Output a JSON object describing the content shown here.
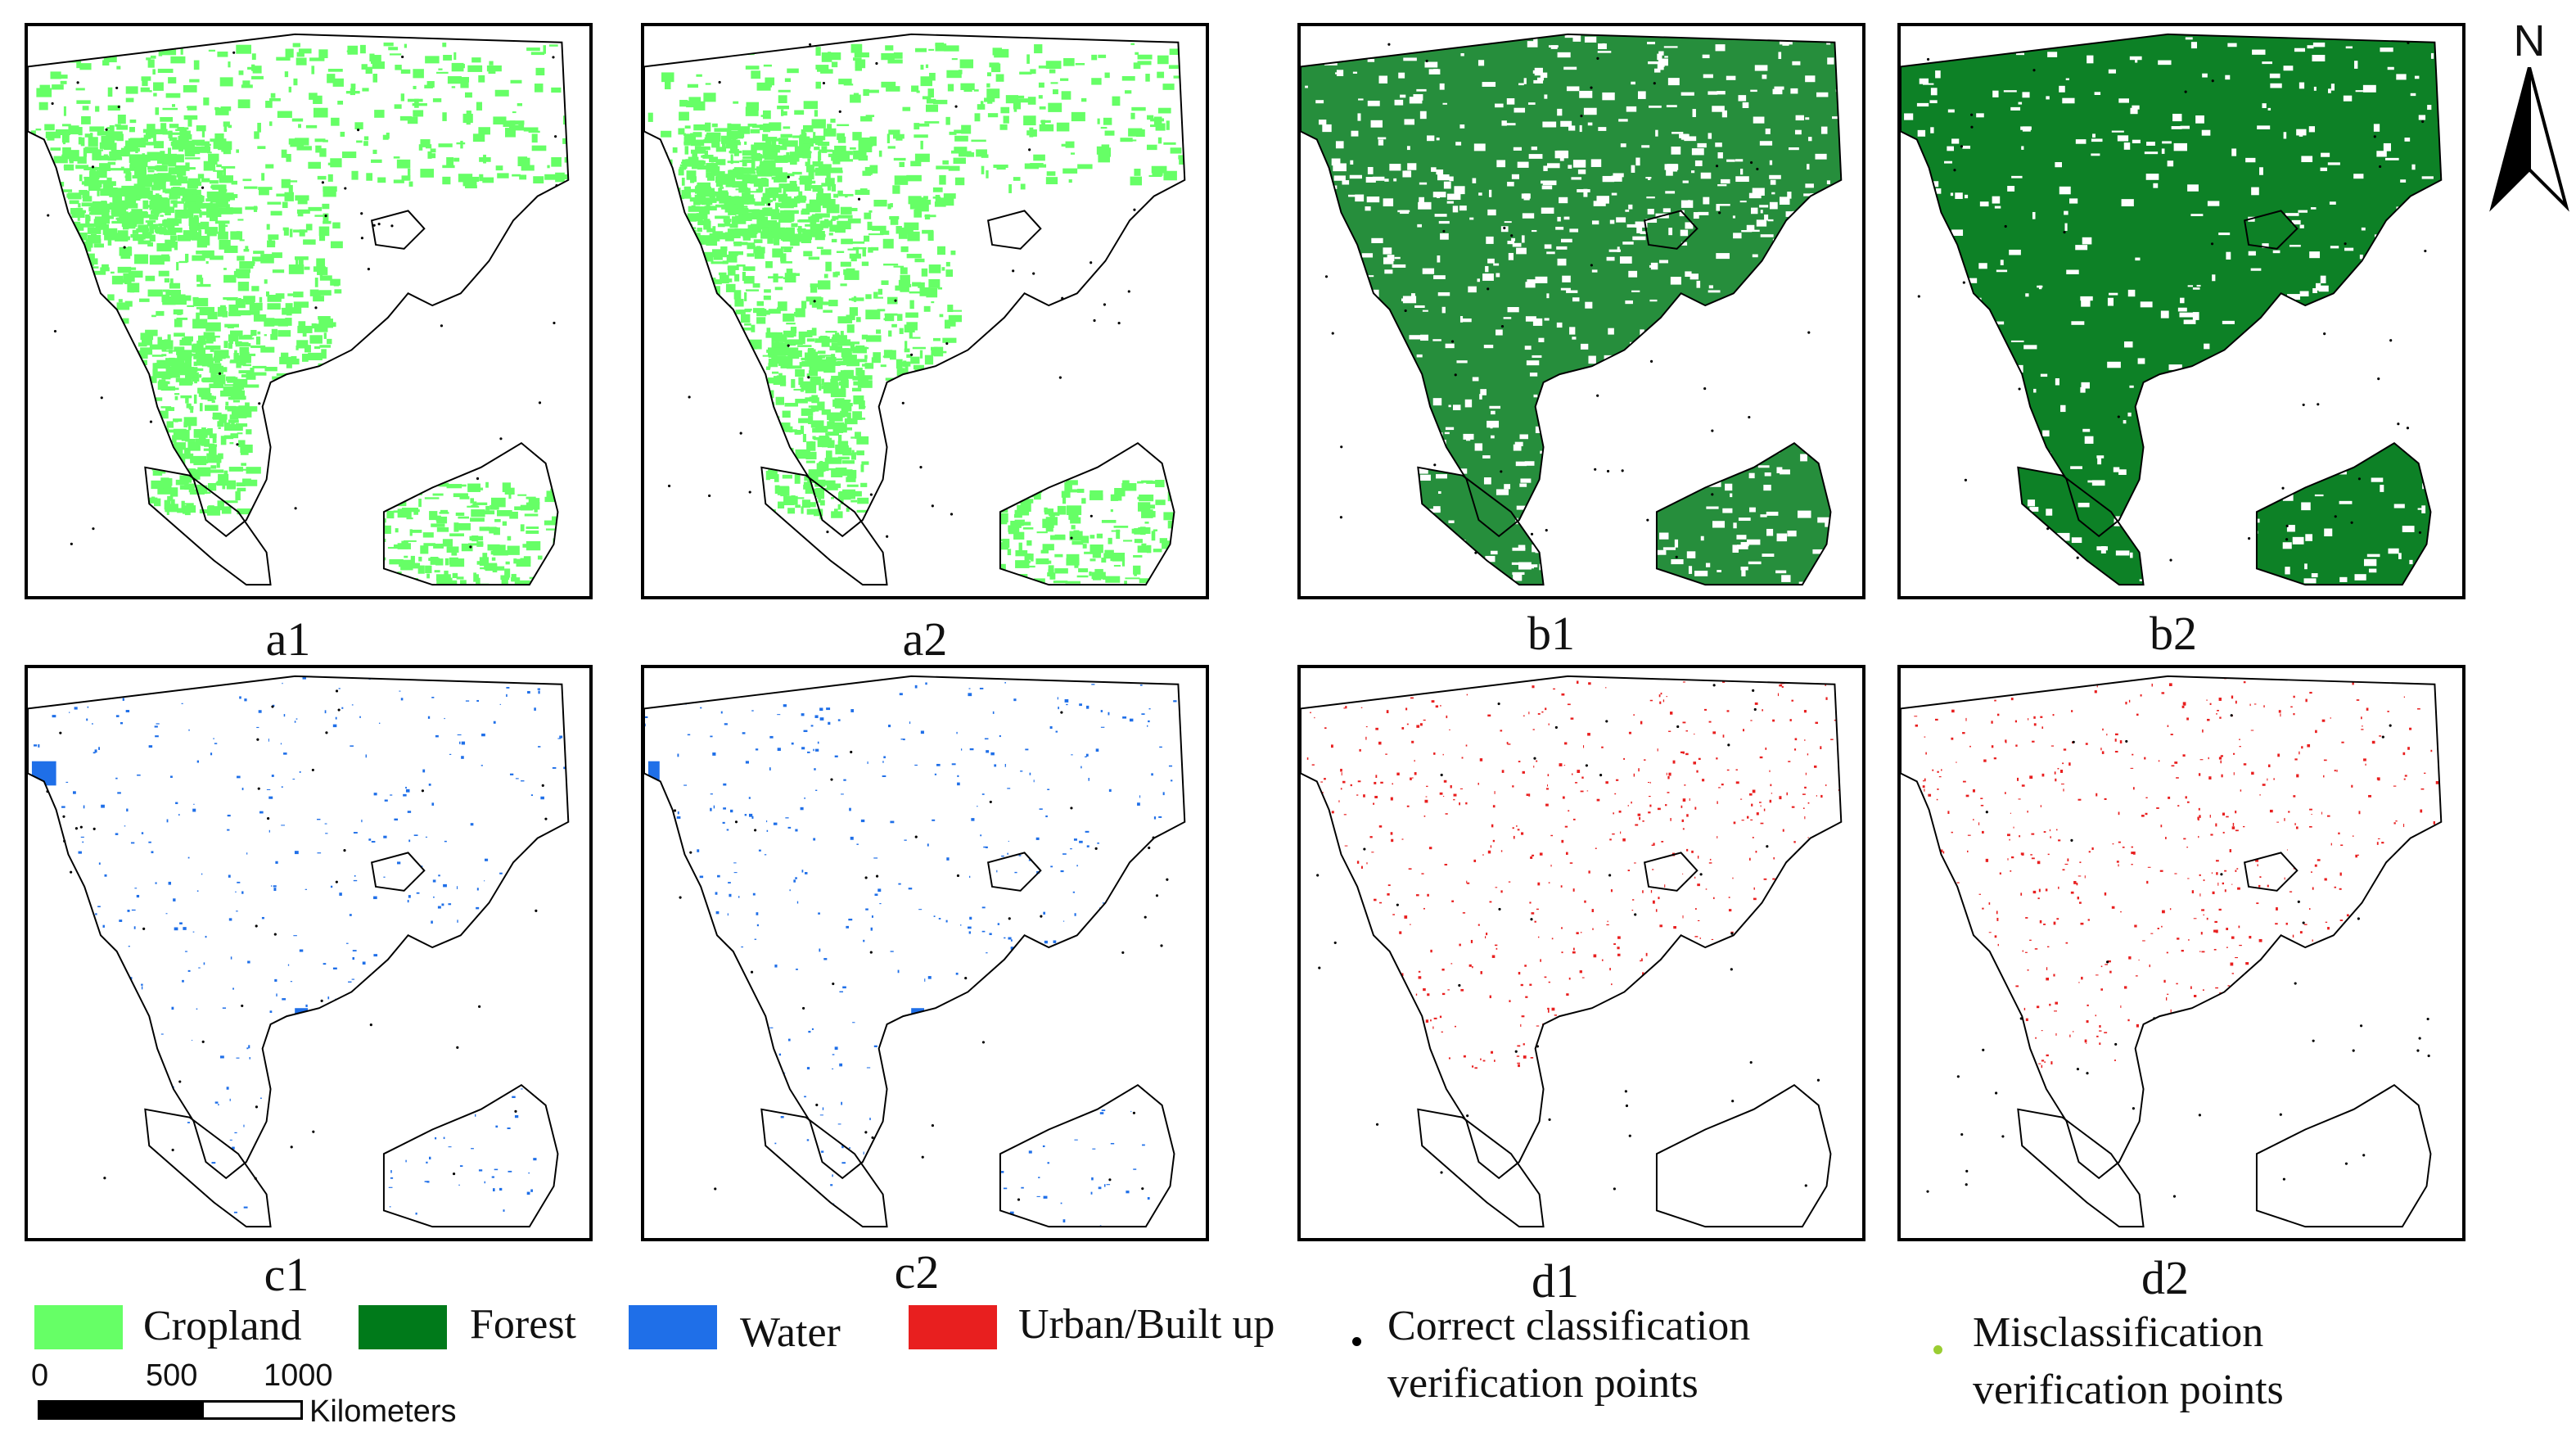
{
  "panels": [
    {
      "id": "a1",
      "label": "a1",
      "layer": "cropland"
    },
    {
      "id": "a2",
      "label": "a2",
      "layer": "cropland"
    },
    {
      "id": "b1",
      "label": "b1",
      "layer": "forest"
    },
    {
      "id": "b2",
      "label": "b2",
      "layer": "forest"
    },
    {
      "id": "c1",
      "label": "c1",
      "layer": "water"
    },
    {
      "id": "c2",
      "label": "c2",
      "layer": "water"
    },
    {
      "id": "d1",
      "label": "d1",
      "layer": "urban"
    },
    {
      "id": "d2",
      "label": "d2",
      "layer": "urban"
    }
  ],
  "layers": {
    "cropland": {
      "color": "#66ff66"
    },
    "forest": {
      "color": "#007a1a"
    },
    "water": {
      "color": "#1f6fe8"
    },
    "urban": {
      "color": "#e81f1f"
    }
  },
  "legend": {
    "cropland": "Cropland",
    "forest": "Forest",
    "water": "Water",
    "urban": "Urban/Built up",
    "correct_line1": "Correct classification",
    "correct_line2": "verification points",
    "mis_line1": "Misclassification",
    "mis_line2": "verification points",
    "correct_color": "#000000",
    "mis_color": "#9acd32"
  },
  "scale": {
    "ticks": [
      "0",
      "500",
      "1000"
    ],
    "unit": "Kilometers"
  },
  "north": {
    "label": "N",
    "icon": "north-arrow-icon"
  }
}
